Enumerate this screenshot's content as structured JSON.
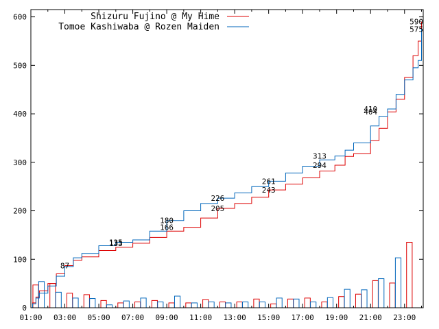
{
  "chart_data": {
    "type": "line",
    "x_ticks": [
      "01:00",
      "03:00",
      "05:00",
      "07:00",
      "09:00",
      "11:00",
      "13:00",
      "15:00",
      "17:00",
      "19:00",
      "21:00",
      "23:00"
    ],
    "y_ticks": [
      0,
      100,
      200,
      300,
      400,
      500,
      600
    ],
    "xlim": [
      0,
      23.1
    ],
    "ylim": [
      0,
      615
    ],
    "grid": false,
    "legend_position": "top-left",
    "series": [
      {
        "name": "Shizuru Fujino @ My Hime",
        "color": "#dd0000",
        "cumulative": [
          [
            0.0,
            0
          ],
          [
            0.1,
            10
          ],
          [
            0.3,
            22
          ],
          [
            0.5,
            35
          ],
          [
            1.0,
            50
          ],
          [
            1.5,
            70
          ],
          [
            2.0,
            87
          ],
          [
            2.5,
            98
          ],
          [
            3.0,
            105
          ],
          [
            4.0,
            118
          ],
          [
            5.0,
            125
          ],
          [
            6.0,
            133
          ],
          [
            7.0,
            145
          ],
          [
            8.0,
            158
          ],
          [
            9.0,
            166
          ],
          [
            10.0,
            185
          ],
          [
            11.0,
            205
          ],
          [
            12.0,
            215
          ],
          [
            13.0,
            228
          ],
          [
            14.0,
            243
          ],
          [
            15.0,
            255
          ],
          [
            16.0,
            268
          ],
          [
            17.0,
            282
          ],
          [
            17.9,
            294
          ],
          [
            18.5,
            312
          ],
          [
            19.0,
            318
          ],
          [
            20.0,
            345
          ],
          [
            20.5,
            370
          ],
          [
            21.0,
            404
          ],
          [
            21.5,
            430
          ],
          [
            22.0,
            475
          ],
          [
            22.5,
            520
          ],
          [
            22.8,
            550
          ],
          [
            23.0,
            590
          ]
        ],
        "bars": [
          47,
          50,
          30,
          27,
          15,
          10,
          12,
          15,
          10,
          10,
          17,
          12,
          12,
          18,
          8,
          18,
          20,
          12,
          23,
          28,
          56,
          51,
          135
        ]
      },
      {
        "name": "Tomoe Kashiwaba @ Rozen Maiden",
        "color": "#0066bb",
        "cumulative": [
          [
            0.0,
            0
          ],
          [
            0.1,
            8
          ],
          [
            0.3,
            20
          ],
          [
            0.5,
            30
          ],
          [
            1.0,
            45
          ],
          [
            1.5,
            65
          ],
          [
            2.0,
            85
          ],
          [
            2.5,
            103
          ],
          [
            3.0,
            112
          ],
          [
            4.0,
            128
          ],
          [
            5.0,
            135
          ],
          [
            6.0,
            140
          ],
          [
            7.0,
            158
          ],
          [
            8.0,
            180
          ],
          [
            9.0,
            200
          ],
          [
            10.0,
            215
          ],
          [
            11.0,
            226
          ],
          [
            12.0,
            237
          ],
          [
            13.0,
            250
          ],
          [
            14.0,
            261
          ],
          [
            15.0,
            278
          ],
          [
            16.0,
            292
          ],
          [
            17.0,
            305
          ],
          [
            17.9,
            313
          ],
          [
            18.5,
            325
          ],
          [
            19.0,
            340
          ],
          [
            20.0,
            375
          ],
          [
            20.5,
            395
          ],
          [
            21.0,
            410
          ],
          [
            21.5,
            440
          ],
          [
            22.0,
            470
          ],
          [
            22.5,
            495
          ],
          [
            22.8,
            510
          ],
          [
            23.0,
            575
          ]
        ],
        "bars": [
          54,
          32,
          20,
          19,
          6,
          14,
          20,
          12,
          24,
          10,
          12,
          10,
          12,
          12,
          20,
          18,
          12,
          21,
          38,
          37,
          60,
          103,
          0
        ]
      }
    ],
    "annotations": [
      {
        "x": 2.0,
        "y": 87,
        "text": "87"
      },
      {
        "x": 5.0,
        "y": 135,
        "text": "135"
      },
      {
        "x": 5.0,
        "y": 133,
        "text": "133"
      },
      {
        "x": 8.0,
        "y": 180,
        "text": "180"
      },
      {
        "x": 8.0,
        "y": 166,
        "text": "166"
      },
      {
        "x": 11.0,
        "y": 226,
        "text": "226"
      },
      {
        "x": 11.0,
        "y": 205,
        "text": "205"
      },
      {
        "x": 14.0,
        "y": 261,
        "text": "261"
      },
      {
        "x": 14.0,
        "y": 243,
        "text": "243"
      },
      {
        "x": 17.0,
        "y": 313,
        "text": "313"
      },
      {
        "x": 17.0,
        "y": 294,
        "text": "294"
      },
      {
        "x": 20.0,
        "y": 410,
        "text": "410"
      },
      {
        "x": 20.0,
        "y": 404,
        "text": "404"
      },
      {
        "x": 22.7,
        "y": 590,
        "text": "590"
      },
      {
        "x": 22.7,
        "y": 575,
        "text": "575"
      }
    ]
  }
}
